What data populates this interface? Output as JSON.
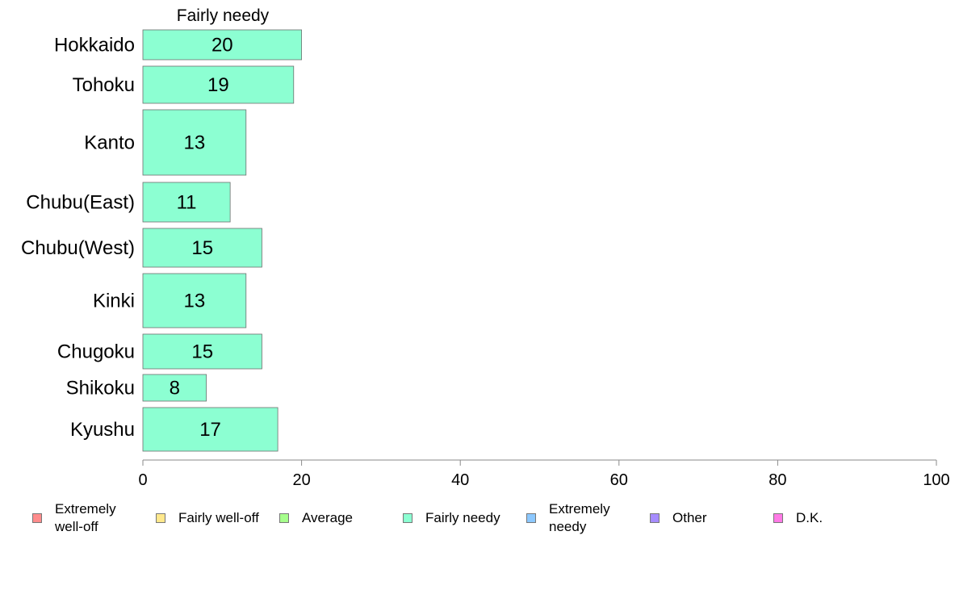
{
  "chart_data": {
    "type": "bar",
    "orientation": "horizontal",
    "title": "Fairly needy",
    "categories": [
      "Hokkaido",
      "Tohoku",
      "Kanto",
      "Chubu(East)",
      "Chubu(West)",
      "Kinki",
      "Chugoku",
      "Shikoku",
      "Kyushu"
    ],
    "values": [
      20,
      19,
      13,
      11,
      15,
      13,
      15,
      8,
      17
    ],
    "xlim": [
      0,
      100
    ],
    "xticks": [
      0,
      20,
      40,
      60,
      80,
      100
    ],
    "bar_color": "#8CFFD2",
    "grid": false,
    "legend_position": "bottom",
    "legend": [
      {
        "label": "Extremely\nwell-off",
        "color": "#FF8C8C"
      },
      {
        "label": "Fairly well-off",
        "color": "#FFE88C"
      },
      {
        "label": "Average",
        "color": "#A6FF8C"
      },
      {
        "label": "Fairly needy",
        "color": "#8CFFD2"
      },
      {
        "label": "Extremely\nneedy",
        "color": "#8CC8FF"
      },
      {
        "label": "Other",
        "color": "#A68CFF"
      },
      {
        "label": "D.K.",
        "color": "#FF7AE6"
      }
    ]
  }
}
